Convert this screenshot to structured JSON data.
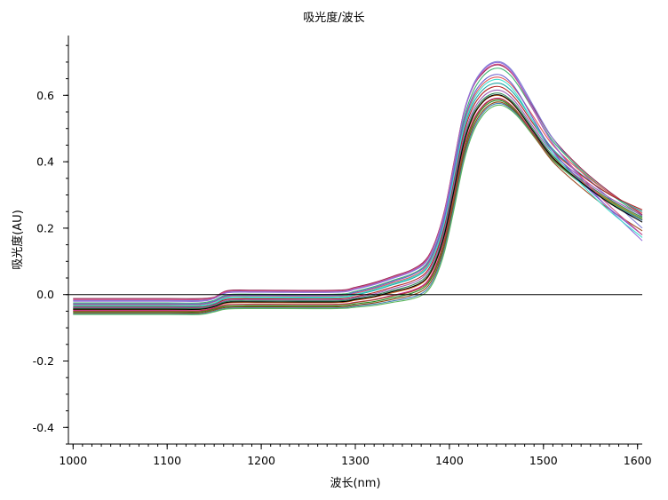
{
  "chart_data": {
    "type": "line",
    "title": "吸光度/波长",
    "xlabel": "波长(nm)",
    "ylabel": "吸光度(AU)",
    "xlim": [
      995,
      1605
    ],
    "ylim": [
      -0.45,
      0.78
    ],
    "x_ticks": [
      1000,
      1100,
      1200,
      1300,
      1400,
      1500,
      1600
    ],
    "x_tick_labels": [
      "1000",
      "1100",
      "1200",
      "1300",
      "1400",
      "1500",
      "1600"
    ],
    "y_ticks": [
      -0.4,
      -0.2,
      0.0,
      0.2,
      0.4,
      0.6
    ],
    "y_tick_labels": [
      "-0.4",
      "-0.2",
      "0.0",
      "0.2",
      "0.4",
      "0.6"
    ],
    "zero_line": true,
    "grid": false,
    "legend": "none",
    "x": [
      1000,
      1100,
      1135,
      1150,
      1165,
      1200,
      1280,
      1300,
      1320,
      1340,
      1360,
      1375,
      1385,
      1395,
      1405,
      1415,
      1425,
      1435,
      1445,
      1455,
      1465,
      1475,
      1490,
      1510,
      1540,
      1570,
      1605
    ],
    "series": [
      {
        "color": "#8e244d",
        "values": [
          -0.012,
          -0.012,
          -0.012,
          -0.008,
          0.012,
          0.013,
          0.013,
          0.022,
          0.036,
          0.055,
          0.075,
          0.105,
          0.16,
          0.255,
          0.4,
          0.545,
          0.625,
          0.665,
          0.688,
          0.69,
          0.67,
          0.632,
          0.56,
          0.47,
          0.38,
          0.31,
          0.24
        ]
      },
      {
        "color": "#7f7fd5",
        "values": [
          -0.018,
          -0.018,
          -0.018,
          -0.01,
          0.008,
          0.009,
          0.009,
          0.018,
          0.032,
          0.051,
          0.071,
          0.1,
          0.155,
          0.25,
          0.395,
          0.545,
          0.63,
          0.675,
          0.698,
          0.7,
          0.68,
          0.64,
          0.565,
          0.47,
          0.37,
          0.29,
          0.2
        ]
      },
      {
        "color": "#3cb371",
        "values": [
          -0.025,
          -0.025,
          -0.025,
          -0.017,
          0.0,
          0.001,
          0.001,
          0.01,
          0.024,
          0.043,
          0.062,
          0.09,
          0.143,
          0.236,
          0.378,
          0.525,
          0.61,
          0.655,
          0.678,
          0.68,
          0.66,
          0.622,
          0.552,
          0.462,
          0.375,
          0.305,
          0.235
        ]
      },
      {
        "color": "#e05c5c",
        "values": [
          -0.03,
          -0.03,
          -0.03,
          -0.022,
          -0.005,
          -0.004,
          -0.004,
          0.004,
          0.018,
          0.036,
          0.054,
          0.082,
          0.135,
          0.226,
          0.365,
          0.508,
          0.59,
          0.632,
          0.652,
          0.653,
          0.634,
          0.598,
          0.533,
          0.45,
          0.37,
          0.306,
          0.245
        ]
      },
      {
        "color": "#20a5a5",
        "values": [
          -0.035,
          -0.035,
          -0.035,
          -0.027,
          -0.01,
          -0.009,
          -0.009,
          -0.001,
          0.012,
          0.03,
          0.048,
          0.075,
          0.127,
          0.216,
          0.352,
          0.493,
          0.574,
          0.615,
          0.634,
          0.635,
          0.616,
          0.582,
          0.518,
          0.438,
          0.362,
          0.302,
          0.25
        ]
      },
      {
        "color": "#b22222",
        "values": [
          -0.038,
          -0.038,
          -0.038,
          -0.03,
          -0.014,
          -0.013,
          -0.013,
          -0.006,
          0.006,
          0.023,
          0.04,
          0.066,
          0.118,
          0.207,
          0.342,
          0.482,
          0.564,
          0.605,
          0.624,
          0.625,
          0.606,
          0.573,
          0.511,
          0.433,
          0.36,
          0.302,
          0.255
        ]
      },
      {
        "color": "#9b59b6",
        "values": [
          -0.04,
          -0.04,
          -0.04,
          -0.032,
          -0.017,
          -0.016,
          -0.016,
          -0.009,
          0.002,
          0.018,
          0.034,
          0.06,
          0.11,
          0.198,
          0.332,
          0.47,
          0.552,
          0.594,
          0.613,
          0.614,
          0.596,
          0.563,
          0.502,
          0.425,
          0.352,
          0.292,
          0.238
        ]
      },
      {
        "color": "#2e8b57",
        "values": [
          -0.042,
          -0.042,
          -0.042,
          -0.034,
          -0.02,
          -0.019,
          -0.019,
          -0.012,
          -0.002,
          0.013,
          0.028,
          0.053,
          0.102,
          0.19,
          0.322,
          0.46,
          0.543,
          0.585,
          0.604,
          0.605,
          0.587,
          0.555,
          0.494,
          0.418,
          0.346,
          0.287,
          0.232
        ]
      },
      {
        "color": "#d2691e",
        "values": [
          -0.045,
          -0.045,
          -0.045,
          -0.037,
          -0.025,
          -0.024,
          -0.024,
          -0.017,
          -0.008,
          0.006,
          0.02,
          0.044,
          0.093,
          0.18,
          0.311,
          0.449,
          0.533,
          0.577,
          0.597,
          0.598,
          0.58,
          0.548,
          0.488,
          0.413,
          0.342,
          0.283,
          0.228
        ]
      },
      {
        "color": "#c71585",
        "values": [
          -0.048,
          -0.048,
          -0.048,
          -0.04,
          -0.03,
          -0.029,
          -0.029,
          -0.023,
          -0.015,
          -0.002,
          0.012,
          0.035,
          0.083,
          0.169,
          0.299,
          0.437,
          0.522,
          0.567,
          0.588,
          0.59,
          0.572,
          0.541,
          0.482,
          0.408,
          0.338,
          0.279,
          0.224
        ]
      },
      {
        "color": "#228b22",
        "values": [
          -0.052,
          -0.052,
          -0.052,
          -0.044,
          -0.035,
          -0.034,
          -0.034,
          -0.028,
          -0.021,
          -0.009,
          0.004,
          0.026,
          0.073,
          0.158,
          0.287,
          0.425,
          0.512,
          0.559,
          0.581,
          0.584,
          0.567,
          0.537,
          0.48,
          0.407,
          0.338,
          0.28,
          0.226
        ]
      },
      {
        "color": "#8b4513",
        "values": [
          -0.055,
          -0.055,
          -0.055,
          -0.047,
          -0.038,
          -0.037,
          -0.037,
          -0.032,
          -0.025,
          -0.014,
          -0.002,
          0.019,
          0.064,
          0.148,
          0.276,
          0.414,
          0.503,
          0.551,
          0.575,
          0.579,
          0.563,
          0.534,
          0.478,
          0.406,
          0.337,
          0.279,
          0.225
        ]
      },
      {
        "color": "#4682b4",
        "values": [
          -0.058,
          -0.058,
          -0.058,
          -0.05,
          -0.041,
          -0.04,
          -0.04,
          -0.035,
          -0.029,
          -0.019,
          -0.008,
          0.012,
          0.056,
          0.139,
          0.267,
          0.405,
          0.495,
          0.545,
          0.57,
          0.575,
          0.56,
          0.532,
          0.476,
          0.404,
          0.335,
          0.277,
          0.223
        ]
      },
      {
        "color": "#5cb85c",
        "values": [
          -0.06,
          -0.06,
          -0.06,
          -0.052,
          -0.043,
          -0.042,
          -0.042,
          -0.038,
          -0.033,
          -0.023,
          -0.013,
          0.006,
          0.049,
          0.131,
          0.258,
          0.396,
          0.487,
          0.538,
          0.564,
          0.57,
          0.556,
          0.529,
          0.475,
          0.404,
          0.336,
          0.279,
          0.227
        ]
      },
      {
        "color": "#a0522d",
        "values": [
          -0.05,
          -0.05,
          -0.05,
          -0.042,
          -0.031,
          -0.03,
          -0.03,
          -0.024,
          -0.016,
          -0.004,
          0.009,
          0.031,
          0.078,
          0.164,
          0.294,
          0.432,
          0.518,
          0.564,
          0.586,
          0.588,
          0.571,
          0.54,
          0.478,
          0.4,
          0.323,
          0.257,
          0.192
        ]
      },
      {
        "color": "#6a5acd",
        "values": [
          -0.028,
          -0.028,
          -0.028,
          -0.02,
          -0.003,
          -0.002,
          -0.002,
          0.007,
          0.021,
          0.04,
          0.059,
          0.087,
          0.14,
          0.232,
          0.372,
          0.515,
          0.598,
          0.64,
          0.66,
          0.661,
          0.64,
          0.6,
          0.525,
          0.432,
          0.34,
          0.26,
          0.18
        ]
      },
      {
        "color": "#d14d8a",
        "values": [
          -0.015,
          -0.015,
          -0.015,
          -0.009,
          0.01,
          0.011,
          0.011,
          0.02,
          0.034,
          0.053,
          0.073,
          0.102,
          0.157,
          0.252,
          0.397,
          0.543,
          0.626,
          0.668,
          0.69,
          0.692,
          0.671,
          0.63,
          0.552,
          0.455,
          0.355,
          0.268,
          0.18
        ]
      },
      {
        "color": "#9370db",
        "values": [
          -0.02,
          -0.02,
          -0.02,
          -0.012,
          0.006,
          0.007,
          0.007,
          0.016,
          0.03,
          0.049,
          0.069,
          0.097,
          0.152,
          0.246,
          0.39,
          0.54,
          0.627,
          0.672,
          0.695,
          0.697,
          0.676,
          0.634,
          0.555,
          0.455,
          0.35,
          0.258,
          0.162
        ]
      },
      {
        "color": "#40e0d0",
        "values": [
          -0.033,
          -0.033,
          -0.033,
          -0.025,
          -0.008,
          -0.007,
          -0.007,
          0.001,
          0.015,
          0.033,
          0.051,
          0.078,
          0.13,
          0.22,
          0.358,
          0.5,
          0.583,
          0.625,
          0.645,
          0.646,
          0.626,
          0.588,
          0.516,
          0.425,
          0.333,
          0.252,
          0.172
        ]
      },
      {
        "color": "#000000",
        "values": [
          -0.044,
          -0.044,
          -0.044,
          -0.036,
          -0.023,
          -0.022,
          -0.022,
          -0.015,
          -0.006,
          0.009,
          0.023,
          0.047,
          0.096,
          0.183,
          0.315,
          0.452,
          0.536,
          0.579,
          0.599,
          0.6,
          0.582,
          0.549,
          0.488,
          0.412,
          0.338,
          0.276,
          0.218
        ]
      }
    ]
  }
}
